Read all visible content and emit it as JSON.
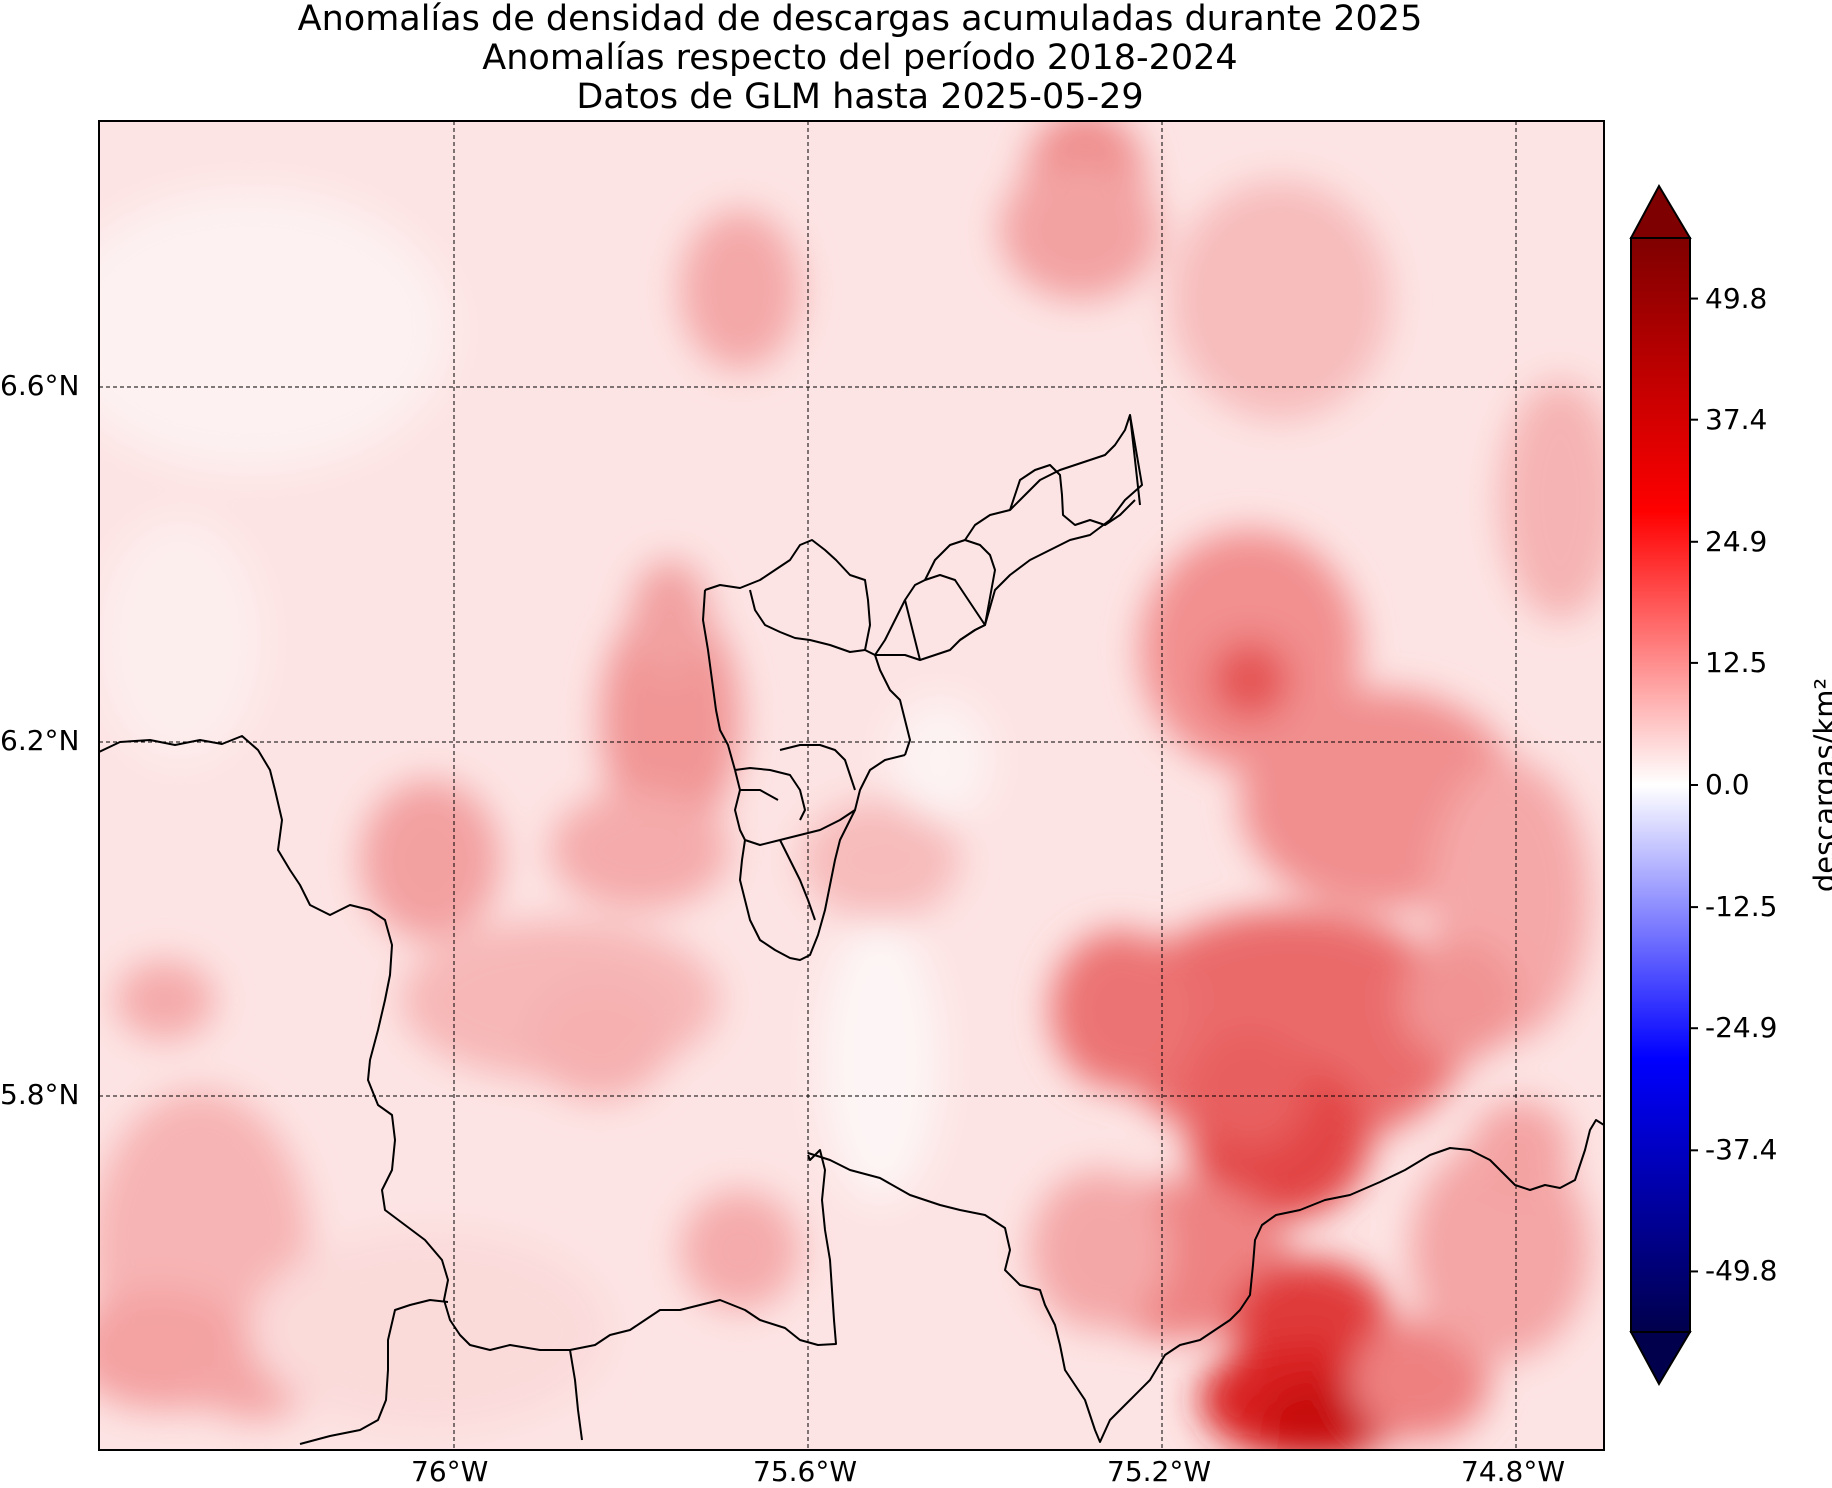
{
  "title": {
    "line1": "Anomalías de densidad de descargas acumuladas durante 2025",
    "line2": "Anomalías respecto del período 2018-2024",
    "line3": "Datos de GLM hasta 2025-05-29"
  },
  "map": {
    "lon_range": [
      -76.39,
      -74.69
    ],
    "lat_range": [
      5.39,
      6.9
    ],
    "lon_ticks": [
      {
        "value": -76.0,
        "label": "76°W"
      },
      {
        "value": -75.6,
        "label": "75.6°W"
      },
      {
        "value": -75.2,
        "label": "75.2°W"
      },
      {
        "value": -74.8,
        "label": "74.8°W"
      }
    ],
    "lat_ticks": [
      {
        "value": 6.6,
        "label": "6.6°N"
      },
      {
        "value": 6.2,
        "label": "6.2°N"
      },
      {
        "value": 5.8,
        "label": "5.8°N"
      }
    ],
    "gridlines": "dashed",
    "field": "anomalía de densidad de descargas",
    "hotspots": [
      {
        "lon": -75.06,
        "lat": 5.45,
        "value": 45
      },
      {
        "lon": -75.05,
        "lat": 5.52,
        "value": 40
      },
      {
        "lon": -75.08,
        "lat": 5.78,
        "value": 35
      },
      {
        "lon": -75.12,
        "lat": 5.88,
        "value": 30
      },
      {
        "lon": -75.28,
        "lat": 5.92,
        "value": 25
      },
      {
        "lon": -75.12,
        "lat": 6.28,
        "value": 25
      },
      {
        "lon": -75.77,
        "lat": 6.25,
        "value": 22
      },
      {
        "lon": -75.35,
        "lat": 6.78,
        "value": 18
      },
      {
        "lon": -75.85,
        "lat": 6.05,
        "value": 14
      },
      {
        "lon": -75.0,
        "lat": 6.15,
        "value": 18
      },
      {
        "lon": -74.9,
        "lat": 5.95,
        "value": 14
      }
    ]
  },
  "colorbar": {
    "label": "descargas/km²",
    "colormap": "seismic",
    "range": [
      -56,
      56
    ],
    "ticks": [
      "49.8",
      "37.4",
      "24.9",
      "12.5",
      "0.0",
      "-12.5",
      "-24.9",
      "-37.4",
      "-49.8"
    ],
    "tick_values": [
      49.8,
      37.4,
      24.9,
      12.5,
      0.0,
      -12.5,
      -24.9,
      -37.4,
      -49.8
    ],
    "colors": {
      "max": "#7f0000",
      "high": "#ff0000",
      "zero": "#ffffff",
      "low": "#0000ff",
      "min": "#00004c"
    }
  }
}
